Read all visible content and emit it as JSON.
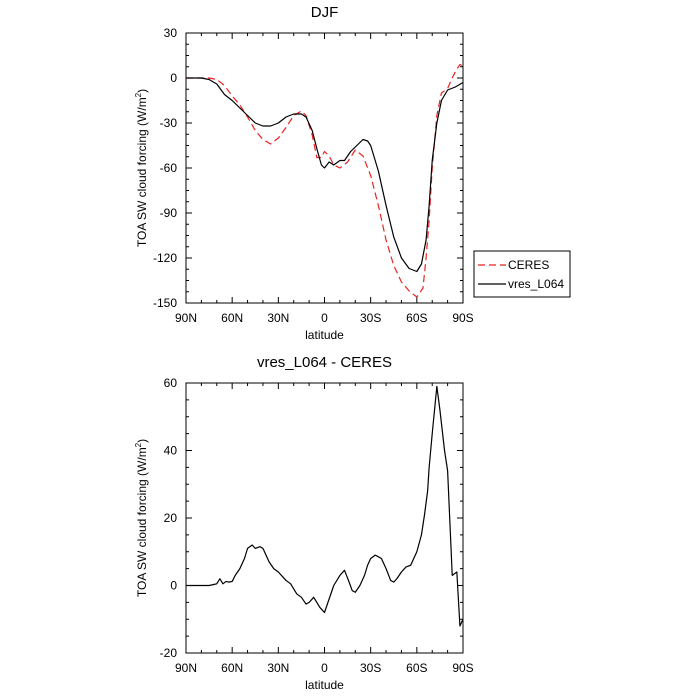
{
  "chart_data": [
    {
      "type": "line",
      "title": "DJF",
      "xlabel": "latitude",
      "ylabel": "TOA SW cloud forcing (W/m",
      "ylabel_sup": "2",
      "ylabel_end": ")",
      "xlim": [
        90,
        -90
      ],
      "ylim": [
        -150,
        30
      ],
      "xticks": [
        90,
        60,
        30,
        0,
        -30,
        -60,
        -90
      ],
      "xtick_labels": [
        "90N",
        "60N",
        "30N",
        "0",
        "30S",
        "60S",
        "90S"
      ],
      "yticks": [
        30,
        0,
        -30,
        -60,
        -90,
        -120,
        -150
      ],
      "ytick_labels": [
        "30",
        "0",
        "-30",
        "-60",
        "-90",
        "-120",
        "-150"
      ],
      "grid": false,
      "legend": "right",
      "series": [
        {
          "name": "CERES",
          "color": "#e8231f",
          "dash": "dashed",
          "x": [
            90,
            85,
            80,
            75,
            70,
            65,
            60,
            55,
            50,
            45,
            40,
            35,
            30,
            25,
            20,
            15,
            12,
            8,
            5,
            2,
            0,
            -3,
            -6,
            -10,
            -15,
            -20,
            -25,
            -30,
            -35,
            -40,
            -45,
            -50,
            -55,
            -60,
            -64,
            -66,
            -68,
            -70,
            -73,
            -76,
            -80,
            -83,
            -86,
            -88,
            -90
          ],
          "y": [
            0,
            0,
            0,
            0,
            -1,
            -5,
            -12,
            -18,
            -26,
            -35,
            -41,
            -44,
            -40,
            -33,
            -25,
            -22,
            -25,
            -38,
            -53,
            -53,
            -49,
            -52,
            -58,
            -60,
            -56,
            -48,
            -52,
            -65,
            -85,
            -108,
            -125,
            -136,
            -142,
            -146,
            -140,
            -120,
            -95,
            -60,
            -25,
            -10,
            -7,
            0,
            6,
            9,
            8
          ]
        },
        {
          "name": "vres_L064",
          "color": "#000000",
          "dash": "solid",
          "x": [
            90,
            85,
            80,
            75,
            70,
            65,
            60,
            55,
            50,
            45,
            40,
            35,
            30,
            25,
            20,
            15,
            12,
            8,
            5,
            2,
            0,
            -3,
            -6,
            -10,
            -13,
            -17,
            -20,
            -25,
            -28,
            -30,
            -35,
            -40,
            -45,
            -50,
            -55,
            -60,
            -63,
            -66,
            -68,
            -70,
            -73,
            -76,
            -80,
            -85,
            -90
          ],
          "y": [
            0,
            0,
            0,
            -1,
            -4,
            -11,
            -15,
            -20,
            -25,
            -30,
            -32,
            -32,
            -30,
            -26,
            -24,
            -24,
            -26,
            -35,
            -47,
            -58,
            -60,
            -56,
            -58,
            -55,
            -55,
            -49,
            -46,
            -41,
            -42,
            -45,
            -62,
            -85,
            -106,
            -120,
            -127,
            -129,
            -124,
            -108,
            -85,
            -55,
            -30,
            -15,
            -8,
            -6,
            -3
          ]
        }
      ]
    },
    {
      "type": "line",
      "title": "vres_L064 - CERES",
      "xlabel": "latitude",
      "ylabel": "TOA SW cloud forcing (W/m",
      "ylabel_sup": "2",
      "ylabel_end": ")",
      "xlim": [
        90,
        -90
      ],
      "ylim": [
        -20,
        60
      ],
      "xticks": [
        90,
        60,
        30,
        0,
        -30,
        -60,
        -90
      ],
      "xtick_labels": [
        "90N",
        "60N",
        "30N",
        "0",
        "30S",
        "60S",
        "90S"
      ],
      "yticks": [
        60,
        40,
        20,
        0,
        -20
      ],
      "ytick_labels": [
        "60",
        "40",
        "20",
        "0",
        "-20"
      ],
      "grid": false,
      "series": [
        {
          "color": "#000000",
          "dash": "solid",
          "x": [
            90,
            85,
            80,
            75,
            72,
            70,
            68,
            66,
            64,
            62,
            60,
            58,
            55,
            52,
            50,
            47,
            45,
            42,
            40,
            38,
            36,
            33,
            30,
            27,
            25,
            22,
            20,
            18,
            15,
            12,
            10,
            7,
            5,
            3,
            0,
            -3,
            -6,
            -10,
            -13,
            -16,
            -18,
            -20,
            -23,
            -26,
            -28,
            -30,
            -33,
            -35,
            -37,
            -40,
            -43,
            -45,
            -47,
            -50,
            -53,
            -56,
            -58,
            -60,
            -63,
            -65,
            -67,
            -68,
            -70,
            -73,
            -75,
            -78,
            -80,
            -83,
            -86,
            -88,
            -90
          ],
          "y": [
            0,
            0,
            0,
            0,
            0.3,
            0.5,
            2,
            0.5,
            1.2,
            1,
            1.2,
            3,
            5,
            8,
            11,
            12,
            11,
            11.5,
            11,
            9,
            7,
            5,
            4,
            2.5,
            1.5,
            0.5,
            -1,
            -2.5,
            -3.5,
            -5.5,
            -5,
            -3.5,
            -5,
            -6.5,
            -8,
            -4,
            0,
            3,
            4.5,
            1,
            -1.5,
            -2,
            0,
            3,
            6,
            8,
            9,
            8.5,
            8,
            5,
            1.5,
            1,
            2,
            4,
            5.5,
            6,
            8,
            10,
            15,
            21,
            28,
            35,
            45,
            59,
            52,
            40,
            34,
            3,
            4,
            -12,
            -10
          ]
        }
      ]
    }
  ]
}
